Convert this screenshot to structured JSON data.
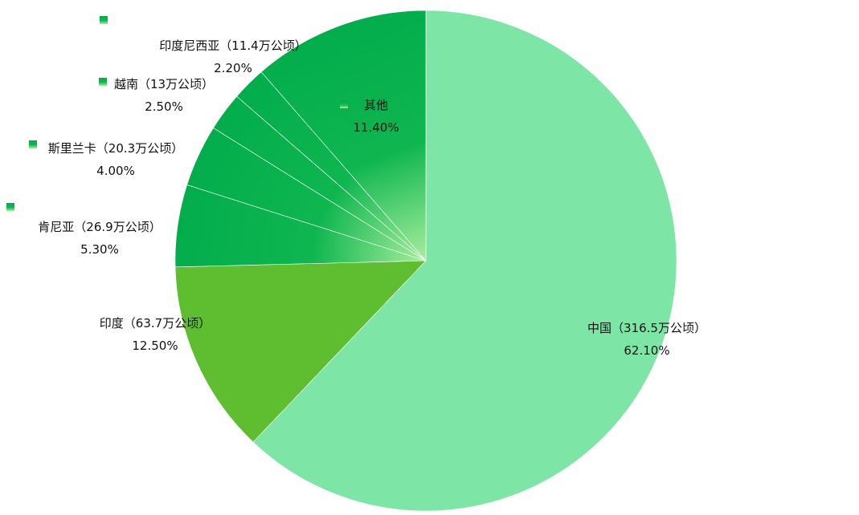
{
  "chart_data": {
    "type": "pie",
    "title": "",
    "unit": "%",
    "slices": [
      {
        "label": "中国（316.5万公顷）",
        "value": 62.1,
        "value_label": "62.10%",
        "color": "#7de5a6"
      },
      {
        "label": "印度（63.7万公顷）",
        "value": 12.5,
        "value_label": "12.50%",
        "color": "#5fbe30"
      },
      {
        "label": "肯尼亚（26.9万公顷）",
        "value": 5.3,
        "value_label": "5.30%",
        "color": "#0cb14b"
      },
      {
        "label": "斯里兰卡（20.3万公顷）",
        "value": 4.0,
        "value_label": "4.00%",
        "color": "#0cb14b"
      },
      {
        "label": "越南（13万公顷）",
        "value": 2.5,
        "value_label": "2.50%",
        "color": "#0cb14b"
      },
      {
        "label": "印度尼西亚（11.4万公顷）",
        "value": 2.2,
        "value_label": "2.20%",
        "color": "#0cb14b"
      },
      {
        "label": "其他",
        "value": 11.4,
        "value_label": "11.40%",
        "color": "#0cb14b"
      }
    ]
  }
}
